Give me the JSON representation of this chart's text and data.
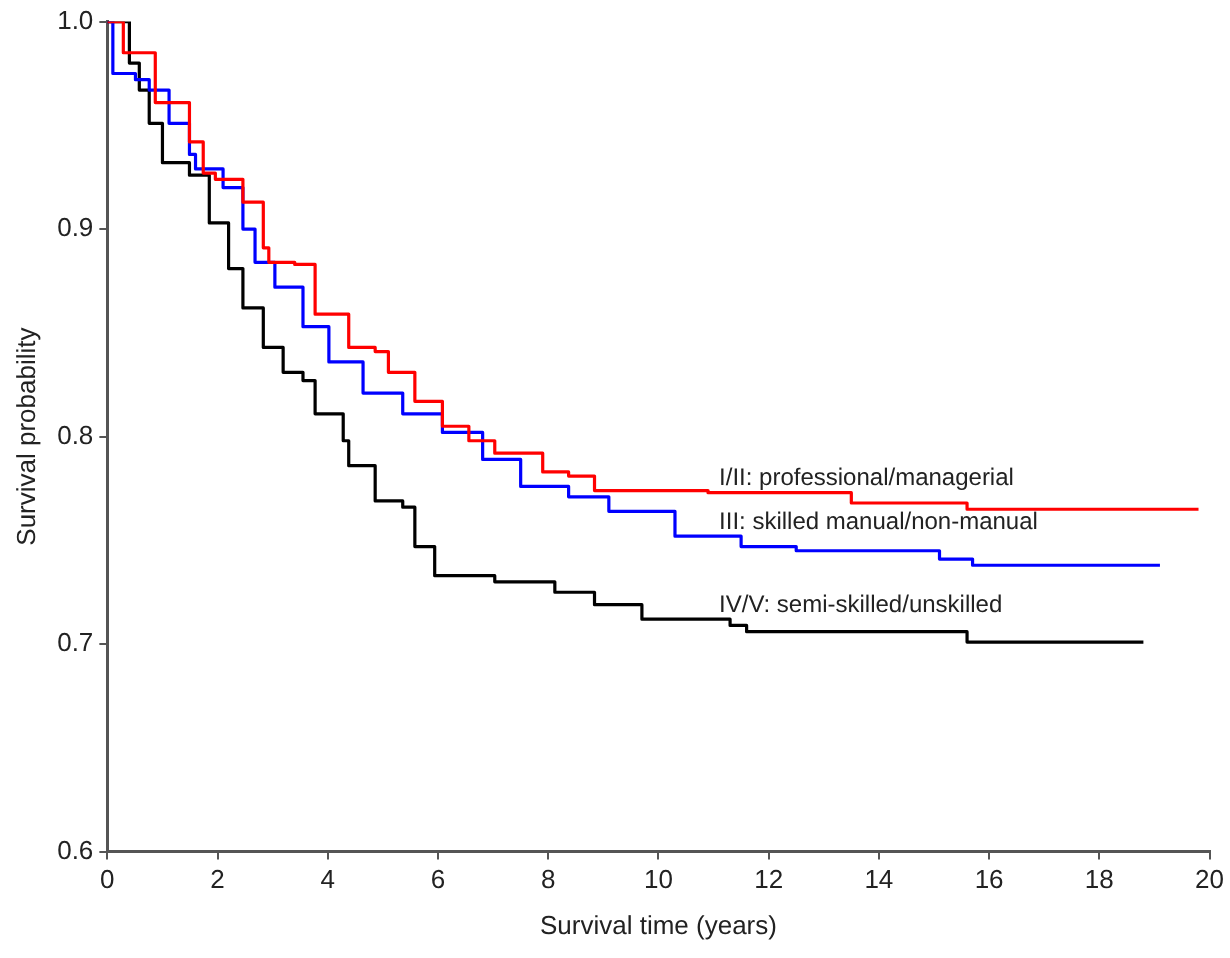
{
  "chart_data": {
    "type": "step",
    "xlabel": "Survival time (years)",
    "ylabel": "Survival probability",
    "xlim": [
      0,
      20
    ],
    "xticks": [
      0,
      2,
      4,
      6,
      8,
      10,
      12,
      14,
      16,
      18,
      20
    ],
    "ylim": [
      0.6,
      1.0
    ],
    "yticks": [
      {
        "value": 0.6,
        "label": "0.6"
      },
      {
        "value": 0.7,
        "label": "0.7"
      },
      {
        "value": 0.8,
        "label": "0.8"
      },
      {
        "value": 0.9,
        "label": "0.9"
      },
      {
        "value": 1.0,
        "label": "1.0"
      }
    ],
    "grid": false,
    "legend": false,
    "marker": "none",
    "line_style": "solid",
    "series": [
      {
        "name": "I/II: professional/managerial",
        "color": "#ff0000",
        "x": [
          0,
          0.29,
          0.87,
          1.49,
          1.74,
          1.96,
          2.46,
          2.83,
          2.93,
          3.4,
          3.77,
          4.38,
          4.86,
          5.1,
          5.58,
          6.08,
          6.56,
          7.03,
          7.9,
          8.37,
          8.84,
          10.9,
          13.5,
          15.6,
          19.8
        ],
        "values": [
          1.0,
          0.985,
          0.961,
          0.942,
          0.927,
          0.924,
          0.913,
          0.891,
          0.884,
          0.883,
          0.859,
          0.843,
          0.841,
          0.831,
          0.817,
          0.805,
          0.798,
          0.792,
          0.783,
          0.781,
          0.774,
          0.773,
          0.768,
          0.765,
          0.765
        ]
      },
      {
        "name": "III: skilled manual/non-manual",
        "color": "#0000ff",
        "x": [
          0,
          0.1,
          0.51,
          0.76,
          1.12,
          1.49,
          1.6,
          2.1,
          2.46,
          2.68,
          3.04,
          3.55,
          4.02,
          4.64,
          5.36,
          6.08,
          6.81,
          7.5,
          8.37,
          9.1,
          10.3,
          11.5,
          12.5,
          15.1,
          15.7,
          19.1
        ],
        "values": [
          1.0,
          0.975,
          0.972,
          0.967,
          0.951,
          0.936,
          0.929,
          0.92,
          0.9,
          0.884,
          0.872,
          0.853,
          0.836,
          0.821,
          0.811,
          0.802,
          0.789,
          0.776,
          0.771,
          0.764,
          0.752,
          0.747,
          0.745,
          0.741,
          0.738,
          0.738
        ]
      },
      {
        "name": "IV/V: semi-skilled/unskilled",
        "color": "#000000",
        "x": [
          0,
          0.4,
          0.58,
          0.76,
          1.0,
          1.49,
          1.85,
          2.2,
          2.46,
          2.83,
          3.19,
          3.55,
          3.77,
          4.28,
          4.38,
          4.86,
          5.36,
          5.58,
          5.94,
          7.03,
          8.12,
          8.84,
          9.7,
          11.3,
          11.6,
          15.6,
          18.8
        ],
        "values": [
          1.0,
          0.98,
          0.967,
          0.951,
          0.932,
          0.926,
          0.903,
          0.881,
          0.862,
          0.843,
          0.831,
          0.827,
          0.811,
          0.798,
          0.786,
          0.769,
          0.766,
          0.747,
          0.733,
          0.73,
          0.725,
          0.719,
          0.712,
          0.709,
          0.706,
          0.701,
          0.701
        ]
      }
    ]
  }
}
